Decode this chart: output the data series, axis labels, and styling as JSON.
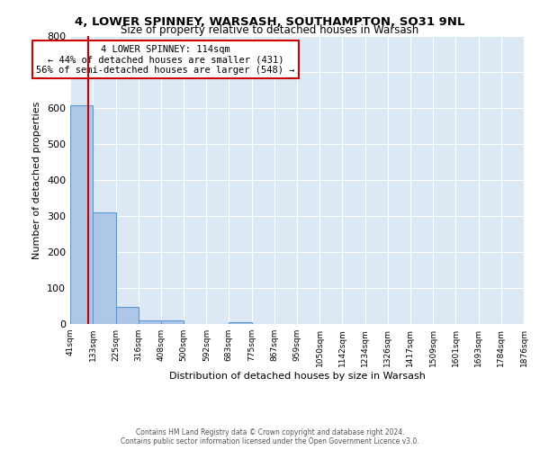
{
  "title": "4, LOWER SPINNEY, WARSASH, SOUTHAMPTON, SO31 9NL",
  "subtitle": "Size of property relative to detached houses in Warsash",
  "xlabel": "Distribution of detached houses by size in Warsash",
  "ylabel": "Number of detached properties",
  "bin_edges": [
    41,
    133,
    225,
    316,
    408,
    500,
    592,
    683,
    775,
    867,
    959,
    1050,
    1142,
    1234,
    1326,
    1417,
    1509,
    1601,
    1693,
    1784,
    1876
  ],
  "bin_counts": [
    608,
    310,
    48,
    11,
    11,
    0,
    0,
    5,
    0,
    0,
    0,
    0,
    0,
    0,
    0,
    0,
    0,
    0,
    0,
    0
  ],
  "bar_color": "#aec6e8",
  "bar_edge_color": "#5a9bd5",
  "property_size": 114,
  "vline_color": "#cc0000",
  "ylim": [
    0,
    800
  ],
  "yticks": [
    0,
    100,
    200,
    300,
    400,
    500,
    600,
    700,
    800
  ],
  "annotation_text": "4 LOWER SPINNEY: 114sqm\n← 44% of detached houses are smaller (431)\n56% of semi-detached houses are larger (548) →",
  "annotation_box_color": "white",
  "annotation_box_edge_color": "#cc0000",
  "footer_line1": "Contains HM Land Registry data © Crown copyright and database right 2024.",
  "footer_line2": "Contains public sector information licensed under the Open Government Licence v3.0.",
  "background_color": "#dce9f5",
  "tick_labels": [
    "41sqm",
    "133sqm",
    "225sqm",
    "316sqm",
    "408sqm",
    "500sqm",
    "592sqm",
    "683sqm",
    "775sqm",
    "867sqm",
    "959sqm",
    "1050sqm",
    "1142sqm",
    "1234sqm",
    "1326sqm",
    "1417sqm",
    "1509sqm",
    "1601sqm",
    "1693sqm",
    "1784sqm",
    "1876sqm"
  ]
}
